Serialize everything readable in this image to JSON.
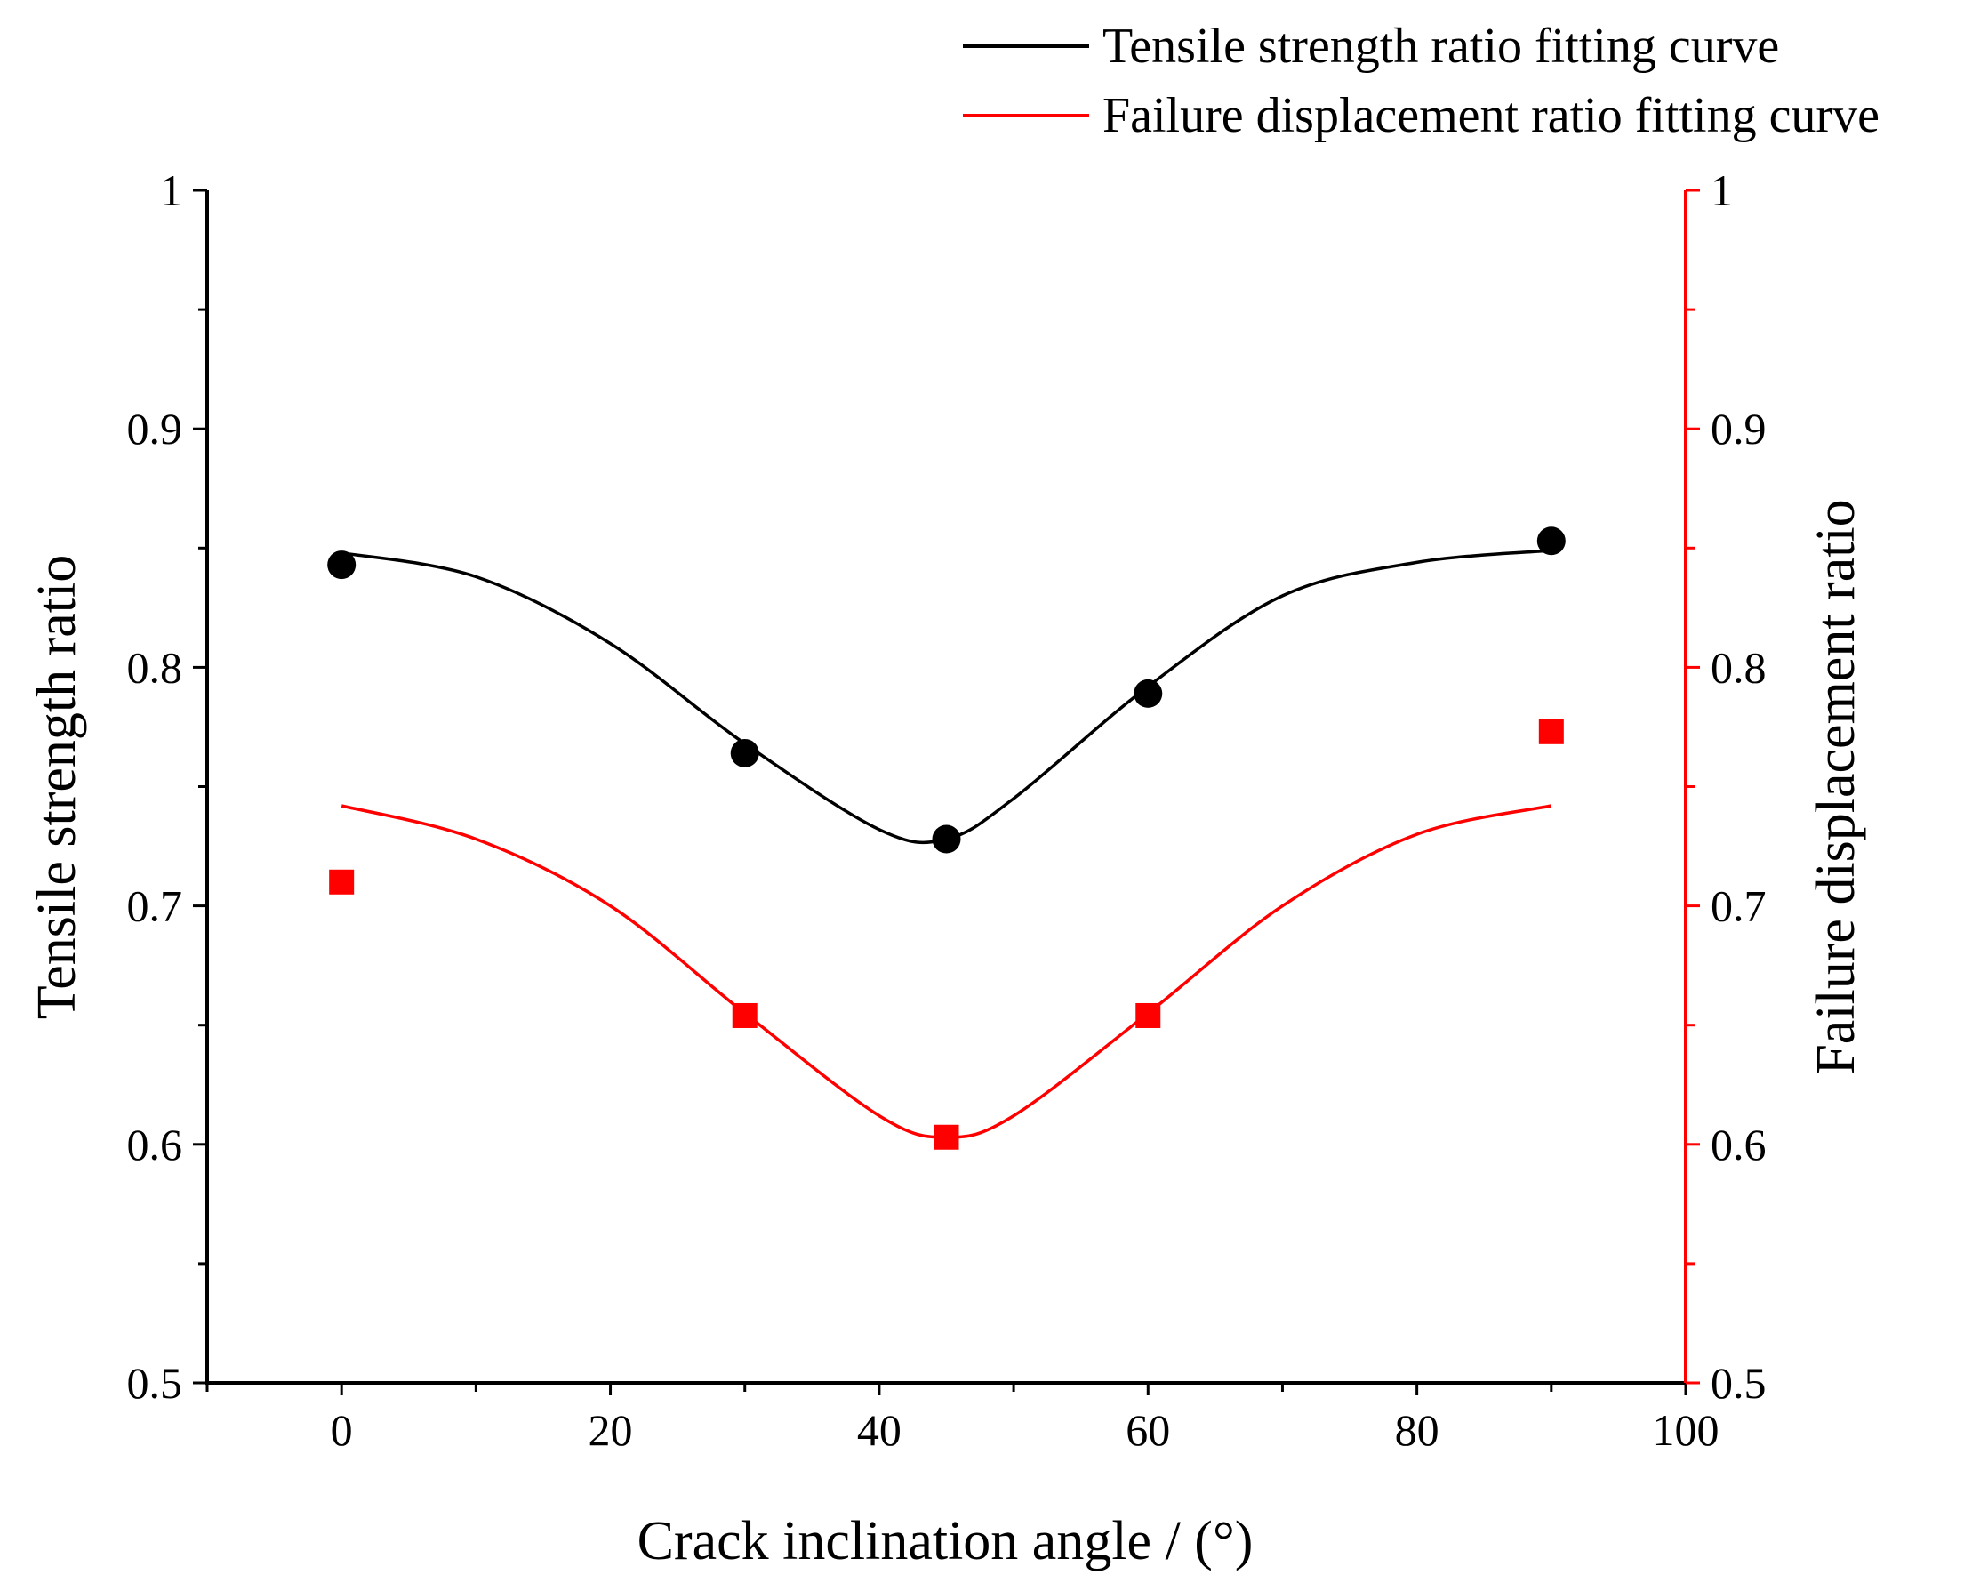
{
  "chart_data": {
    "type": "scatter",
    "xlabel": "Crack inclination angle / (°)",
    "ylabel": "Tensile strength ratio",
    "y2label": "Failure displacement ratio",
    "xlim": [
      -10,
      100
    ],
    "ylim": [
      0.5,
      1.0
    ],
    "y2lim": [
      0.5,
      1.0
    ],
    "x_ticks": [
      0,
      20,
      40,
      60,
      80,
      100
    ],
    "y_ticks": [
      0.5,
      0.6,
      0.7,
      0.8,
      0.9,
      1.0
    ],
    "y2_ticks": [
      0.5,
      0.6,
      0.7,
      0.8,
      0.9,
      1.0
    ],
    "legend_position": "top-right",
    "series": [
      {
        "name": "Tensile strength ratio",
        "axis": "left",
        "color": "#000000",
        "marker": "circle",
        "x": [
          0,
          30,
          45,
          60,
          90
        ],
        "y": [
          0.843,
          0.764,
          0.728,
          0.789,
          0.853
        ]
      },
      {
        "name": "Failure displacement ratio",
        "axis": "right",
        "color": "#ff0000",
        "marker": "square",
        "x": [
          0,
          30,
          45,
          60,
          90
        ],
        "y": [
          0.71,
          0.654,
          0.603,
          0.654,
          0.773
        ]
      }
    ],
    "fits": [
      {
        "name": "Tensile strength ratio fitting curve",
        "axis": "left",
        "color": "#000000",
        "x": [
          0,
          10,
          20,
          30,
          40,
          45,
          50,
          60,
          70,
          80,
          90
        ],
        "y": [
          0.848,
          0.838,
          0.81,
          0.768,
          0.732,
          0.728,
          0.745,
          0.792,
          0.83,
          0.844,
          0.849
        ]
      },
      {
        "name": "Failure displacement ratio fitting curve",
        "axis": "right",
        "color": "#ff0000",
        "x": [
          0,
          10,
          20,
          30,
          40,
          45,
          50,
          60,
          70,
          80,
          90
        ],
        "y": [
          0.742,
          0.728,
          0.7,
          0.655,
          0.612,
          0.603,
          0.612,
          0.655,
          0.7,
          0.73,
          0.742
        ]
      }
    ]
  }
}
